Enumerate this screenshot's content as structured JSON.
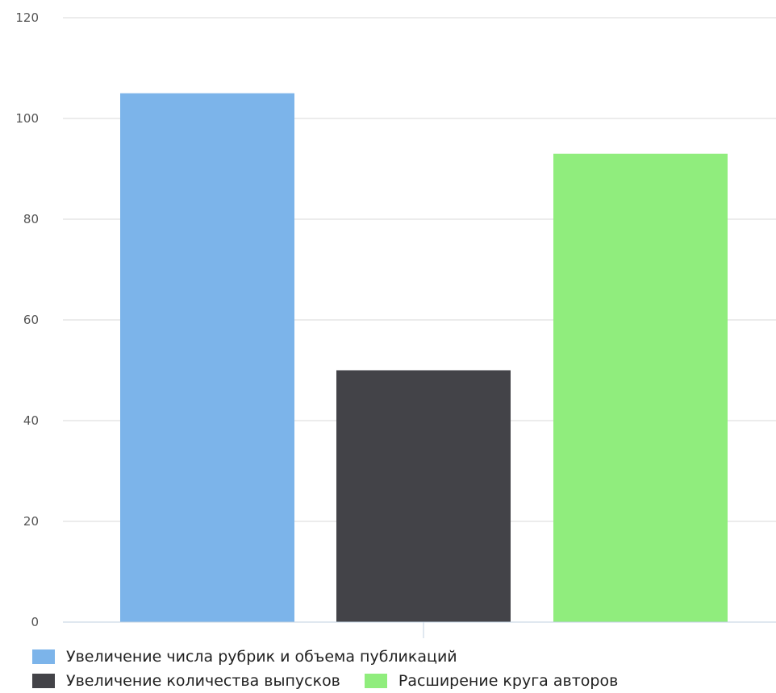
{
  "chart_data": {
    "type": "bar",
    "categories": [
      "Увеличение числа рубрик и объема публикаций",
      "Увеличение количества выпусков",
      "Расширение круга авторов"
    ],
    "values": [
      105,
      50,
      93
    ],
    "colors": [
      "#7cb4ea",
      "#434348",
      "#90ed7d"
    ],
    "ylim": [
      0,
      120
    ],
    "yticks": [
      0,
      20,
      40,
      60,
      80,
      100,
      120
    ],
    "grid": true,
    "legend_position": "bottom"
  },
  "legend": {
    "items": [
      {
        "label": "Увеличение числа рубрик и объема публикаций",
        "color": "#7cb4ea"
      },
      {
        "label": "Увеличение количества выпусков",
        "color": "#434348"
      },
      {
        "label": "Расширение круга авторов",
        "color": "#90ed7d"
      }
    ]
  }
}
